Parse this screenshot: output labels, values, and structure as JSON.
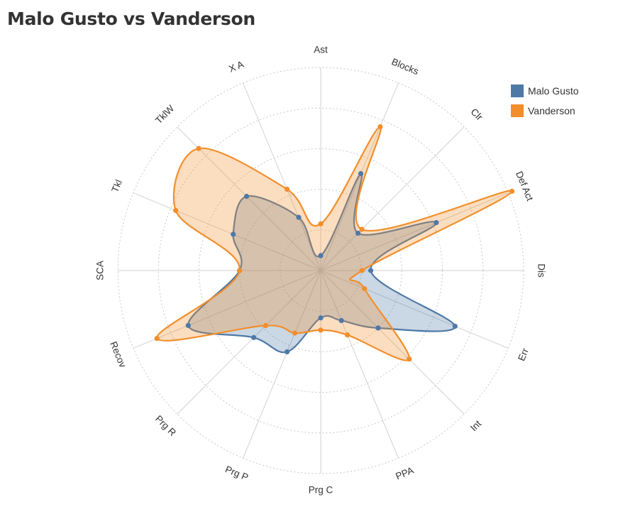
{
  "title": "Malo Gusto vs Vanderson",
  "legend": [
    {
      "name": "Malo Gusto",
      "color": "#4e79a7"
    },
    {
      "name": "Vanderson",
      "color": "#f28e2b"
    }
  ],
  "chart_data": {
    "type": "radar",
    "categories": [
      "Ast",
      "Blocks",
      "Clr",
      "Def Act",
      "Dis",
      "Err",
      "Int",
      "PPA",
      "Prg C",
      "Prg P",
      "Prg R",
      "Recov",
      "SCA",
      "Tkl",
      "TklW",
      "X A"
    ],
    "rmax": 300,
    "rings": 5,
    "grid": "dotted-circles",
    "legend_position": "top-right",
    "series": [
      {
        "name": "Malo Gusto",
        "color": "#4e79a7",
        "values": [
          22,
          155,
          78,
          185,
          74,
          215,
          120,
          80,
          70,
          130,
          140,
          212,
          120,
          140,
          155,
          85
        ]
      },
      {
        "name": "Vanderson",
        "color": "#f28e2b",
        "values": [
          69,
          230,
          86,
          306,
          61,
          70,
          185,
          103,
          88,
          100,
          115,
          262,
          120,
          232,
          255,
          130
        ]
      }
    ]
  }
}
